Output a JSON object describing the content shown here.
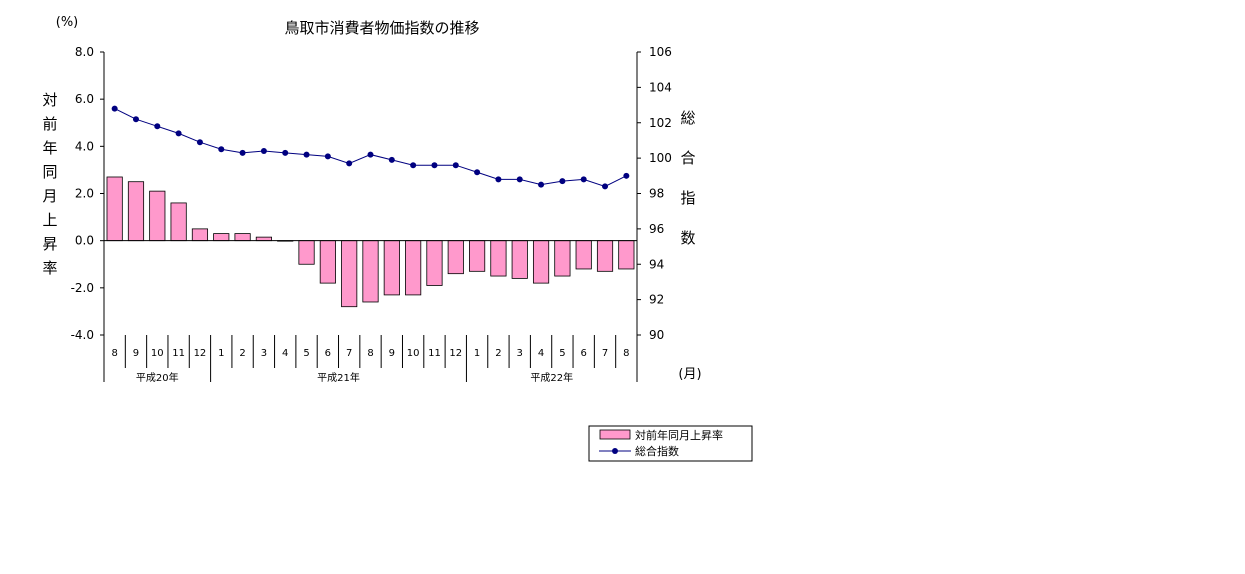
{
  "chart_data": {
    "type": "bar+line",
    "title": "鳥取市消費者物価指数の推移",
    "y_left_unit": "(%)",
    "y_left_label": "対前年同月上昇率",
    "y_right_label": "総合指数",
    "x_unit": "(月)",
    "y_left_range": [
      -4.0,
      8.0
    ],
    "y_left_ticks": [
      "8.0",
      "6.0",
      "4.0",
      "2.0",
      "0.0",
      "-2.0",
      "-4.0"
    ],
    "y_right_range": [
      90,
      106
    ],
    "y_right_ticks": [
      "106",
      "104",
      "102",
      "100",
      "98",
      "96",
      "94",
      "92",
      "90"
    ],
    "months": [
      "8",
      "9",
      "10",
      "11",
      "12",
      "1",
      "2",
      "3",
      "4",
      "5",
      "6",
      "7",
      "8",
      "9",
      "10",
      "11",
      "12",
      "1",
      "2",
      "3",
      "4",
      "5",
      "6",
      "7",
      "8"
    ],
    "year_groups": [
      {
        "label": "平成20年",
        "count": 5
      },
      {
        "label": "平成21年",
        "count": 12
      },
      {
        "label": "平成22年",
        "count": 8
      }
    ],
    "series": [
      {
        "name": "対前年同月上昇率",
        "type": "bar",
        "axis": "left",
        "values": [
          2.7,
          2.5,
          2.1,
          1.6,
          0.5,
          0.3,
          0.3,
          0.15,
          0.0,
          -1.0,
          -1.8,
          -2.8,
          -2.6,
          -2.3,
          -2.3,
          -1.9,
          -1.4,
          -1.3,
          -1.5,
          -1.6,
          -1.8,
          -1.5,
          -1.2,
          -1.3,
          -1.2
        ]
      },
      {
        "name": "総合指数",
        "type": "line",
        "axis": "right",
        "values": [
          102.8,
          102.2,
          101.8,
          101.4,
          100.9,
          100.5,
          100.3,
          100.4,
          100.3,
          100.2,
          100.1,
          99.7,
          100.2,
          99.9,
          99.6,
          99.6,
          99.6,
          99.2,
          98.8,
          98.8,
          98.5,
          98.7,
          98.8,
          98.4,
          99.0
        ]
      }
    ],
    "grid": false,
    "legend": "bottom-right",
    "colors": {
      "bar": "#ff99cc",
      "line": "#000080"
    }
  }
}
